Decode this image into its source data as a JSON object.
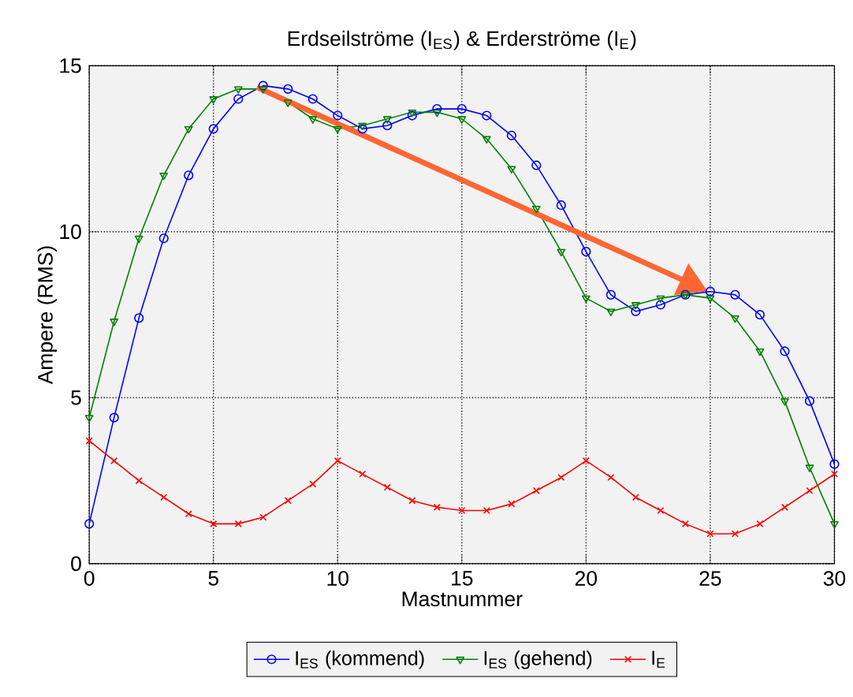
{
  "chart_data": {
    "type": "line",
    "title": "Erdseilströme (I$_{ES}$) & Erderströme (I$_{E}$)",
    "xlabel": "Mastnummer",
    "ylabel": "Ampere (RMS)",
    "x": [
      0,
      1,
      2,
      3,
      4,
      5,
      6,
      7,
      8,
      9,
      10,
      11,
      12,
      13,
      14,
      15,
      16,
      17,
      18,
      19,
      20,
      21,
      22,
      23,
      24,
      25,
      26,
      27,
      28,
      29,
      30
    ],
    "series": [
      {
        "name": "I$_{ES}$ (kommend)",
        "color": "#0000ff",
        "marker": "circle",
        "values": [
          1.2,
          4.4,
          7.4,
          9.8,
          11.7,
          13.1,
          14.0,
          14.4,
          14.3,
          14.0,
          13.5,
          13.1,
          13.2,
          13.5,
          13.7,
          13.7,
          13.5,
          12.9,
          12.0,
          10.8,
          9.4,
          8.1,
          7.6,
          7.8,
          8.1,
          8.2,
          8.1,
          7.5,
          6.4,
          4.9,
          3.0
        ]
      },
      {
        "name": "I$_{ES}$ (gehend)",
        "color": "#008000",
        "marker": "triangle",
        "values": [
          4.4,
          7.3,
          9.8,
          11.7,
          13.1,
          14.0,
          14.3,
          14.3,
          13.9,
          13.4,
          13.1,
          13.2,
          13.4,
          13.6,
          13.6,
          13.4,
          12.8,
          11.9,
          10.7,
          9.4,
          8.0,
          7.6,
          7.8,
          8.0,
          8.1,
          8.0,
          7.4,
          6.4,
          4.9,
          2.9,
          1.2
        ]
      },
      {
        "name": "I$_{E}$",
        "color": "#ff0000",
        "marker": "cross",
        "values": [
          3.7,
          3.1,
          2.5,
          2.0,
          1.5,
          1.2,
          1.2,
          1.4,
          1.9,
          2.4,
          3.1,
          2.7,
          2.3,
          1.9,
          1.7,
          1.6,
          1.6,
          1.8,
          2.2,
          2.6,
          3.1,
          2.6,
          2.0,
          1.6,
          1.2,
          0.9,
          0.9,
          1.2,
          1.7,
          2.2,
          2.7
        ]
      }
    ],
    "xlim": [
      0,
      30
    ],
    "ylim": [
      0,
      15
    ],
    "xticks": [
      0,
      5,
      10,
      15,
      20,
      25,
      30
    ],
    "yticks": [
      0,
      5,
      10,
      15
    ],
    "grid": true,
    "legend": "bottom",
    "line_style": "solid"
  }
}
